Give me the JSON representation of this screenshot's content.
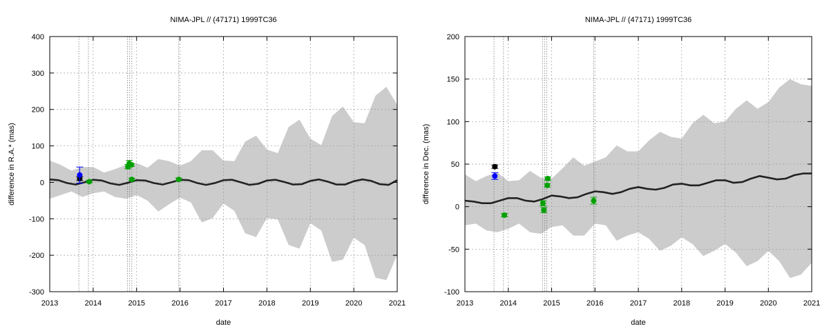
{
  "chart_data": [
    {
      "type": "line",
      "title": "NIMA-JPL // (47171) 1999TC36",
      "xlabel": "date",
      "ylabel": "difference in R.A.* (mas)",
      "xlim": [
        2013,
        2021
      ],
      "ylim": [
        -300,
        400
      ],
      "xticks": [
        2013,
        2014,
        2015,
        2016,
        2017,
        2018,
        2019,
        2020,
        2021
      ],
      "yticks": [
        -300,
        -200,
        -100,
        0,
        100,
        200,
        300,
        400
      ],
      "grid": true,
      "vlines": [
        2013.67,
        2013.89,
        2014.79,
        2014.84,
        2014.89,
        2015.97
      ],
      "series": [
        {
          "role": "uncertainty-band",
          "color": "#cccccc",
          "x": [
            2013.0,
            2013.25,
            2013.5,
            2013.75,
            2014.0,
            2014.25,
            2014.5,
            2014.75,
            2015.0,
            2015.25,
            2015.5,
            2015.75,
            2016.0,
            2016.25,
            2016.5,
            2016.75,
            2017.0,
            2017.25,
            2017.5,
            2017.75,
            2018.0,
            2018.25,
            2018.5,
            2018.75,
            2019.0,
            2019.25,
            2019.5,
            2019.75,
            2020.0,
            2020.25,
            2020.5,
            2020.75,
            2021.0
          ],
          "upper": [
            60,
            48,
            32,
            42,
            42,
            27,
            36,
            48,
            53,
            40,
            64,
            58,
            46,
            58,
            88,
            88,
            60,
            58,
            112,
            128,
            90,
            80,
            152,
            172,
            120,
            102,
            182,
            208,
            165,
            162,
            238,
            262,
            212
          ],
          "lower": [
            -45,
            -35,
            -25,
            -40,
            -30,
            -25,
            -40,
            -45,
            -35,
            -50,
            -80,
            -60,
            -42,
            -55,
            -110,
            -98,
            -58,
            -78,
            -140,
            -150,
            -98,
            -102,
            -172,
            -182,
            -112,
            -132,
            -218,
            -212,
            -152,
            -172,
            -262,
            -268,
            -198
          ]
        },
        {
          "role": "model-curve",
          "color": "#222222",
          "x": [
            2013.0,
            2013.2,
            2013.4,
            2013.6,
            2013.8,
            2014.0,
            2014.2,
            2014.4,
            2014.6,
            2014.8,
            2015.0,
            2015.2,
            2015.4,
            2015.6,
            2015.8,
            2016.0,
            2016.2,
            2016.4,
            2016.6,
            2016.8,
            2017.0,
            2017.2,
            2017.4,
            2017.6,
            2017.8,
            2018.0,
            2018.2,
            2018.4,
            2018.6,
            2018.8,
            2019.0,
            2019.2,
            2019.4,
            2019.6,
            2019.8,
            2020.0,
            2020.2,
            2020.4,
            2020.6,
            2020.8,
            2021.0
          ],
          "y": [
            8,
            6,
            -2,
            -6,
            0,
            7,
            5,
            -3,
            -7,
            -1,
            6,
            5,
            -2,
            -6,
            0,
            7,
            6,
            -2,
            -7,
            -2,
            6,
            7,
            0,
            -7,
            -4,
            5,
            7,
            1,
            -6,
            -5,
            4,
            8,
            2,
            -6,
            -6,
            3,
            8,
            4,
            -5,
            -7,
            6
          ]
        },
        {
          "role": "observations",
          "color": "#000000",
          "x": [
            2013.69
          ],
          "y": [
            10
          ],
          "err": [
            5
          ]
        },
        {
          "role": "observations",
          "color": "#0000ff",
          "x": [
            2013.69
          ],
          "y": [
            20
          ],
          "err": [
            22
          ]
        },
        {
          "role": "observations",
          "color": "#00a000",
          "x": [
            2013.91,
            2014.8,
            2014.83,
            2014.88,
            2014.89,
            2015.97
          ],
          "y": [
            2,
            43,
            52,
            48,
            8,
            8
          ],
          "err": [
            3,
            6,
            8,
            4,
            3,
            4
          ]
        }
      ]
    },
    {
      "type": "line",
      "title": "NIMA-JPL // (47171) 1999TC36",
      "xlabel": "date",
      "ylabel": "difference in Dec. (mas)",
      "xlim": [
        2013,
        2021
      ],
      "ylim": [
        -100,
        200
      ],
      "xticks": [
        2013,
        2014,
        2015,
        2016,
        2017,
        2018,
        2019,
        2020,
        2021
      ],
      "yticks": [
        -100,
        -50,
        0,
        50,
        100,
        150,
        200
      ],
      "grid": true,
      "vlines": [
        2013.67,
        2013.89,
        2014.79,
        2014.84,
        2014.89,
        2015.97
      ],
      "series": [
        {
          "role": "uncertainty-band",
          "color": "#cccccc",
          "x": [
            2013.0,
            2013.25,
            2013.5,
            2013.75,
            2014.0,
            2014.25,
            2014.5,
            2014.75,
            2015.0,
            2015.25,
            2015.5,
            2015.75,
            2016.0,
            2016.25,
            2016.5,
            2016.75,
            2017.0,
            2017.25,
            2017.5,
            2017.75,
            2018.0,
            2018.25,
            2018.5,
            2018.75,
            2019.0,
            2019.25,
            2019.5,
            2019.75,
            2020.0,
            2020.25,
            2020.5,
            2020.75,
            2021.0
          ],
          "upper": [
            38,
            30,
            36,
            40,
            30,
            31,
            42,
            34,
            33,
            45,
            58,
            48,
            53,
            58,
            72,
            65,
            65,
            78,
            88,
            82,
            80,
            98,
            108,
            98,
            100,
            115,
            125,
            115,
            123,
            140,
            150,
            144,
            142
          ],
          "lower": [
            -22,
            -20,
            -28,
            -30,
            -26,
            -20,
            -30,
            -32,
            -24,
            -22,
            -34,
            -34,
            -20,
            -22,
            -40,
            -34,
            -30,
            -38,
            -52,
            -46,
            -36,
            -44,
            -58,
            -52,
            -44,
            -54,
            -70,
            -64,
            -52,
            -64,
            -84,
            -80,
            -66
          ]
        },
        {
          "role": "model-curve",
          "color": "#222222",
          "x": [
            2013.0,
            2013.2,
            2013.4,
            2013.6,
            2013.8,
            2014.0,
            2014.2,
            2014.4,
            2014.6,
            2014.8,
            2015.0,
            2015.2,
            2015.4,
            2015.6,
            2015.8,
            2016.0,
            2016.2,
            2016.4,
            2016.6,
            2016.8,
            2017.0,
            2017.2,
            2017.4,
            2017.6,
            2017.8,
            2018.0,
            2018.2,
            2018.4,
            2018.6,
            2018.8,
            2019.0,
            2019.2,
            2019.4,
            2019.6,
            2019.8,
            2020.0,
            2020.2,
            2020.4,
            2020.6,
            2020.8,
            2021.0
          ],
          "y": [
            7,
            6,
            4,
            4,
            7,
            10,
            10,
            7,
            6,
            9,
            13,
            12,
            10,
            11,
            15,
            18,
            17,
            15,
            17,
            21,
            23,
            21,
            20,
            22,
            26,
            27,
            25,
            25,
            28,
            31,
            31,
            28,
            29,
            33,
            36,
            34,
            32,
            33,
            37,
            39,
            39
          ]
        },
        {
          "role": "observations",
          "color": "#000000",
          "x": [
            2013.69
          ],
          "y": [
            47
          ],
          "err": [
            2
          ]
        },
        {
          "role": "observations",
          "color": "#0000ff",
          "x": [
            2013.69
          ],
          "y": [
            36
          ],
          "err": [
            4
          ]
        },
        {
          "role": "observations",
          "color": "#00a000",
          "x": [
            2013.91,
            2014.8,
            2014.82,
            2014.9,
            2014.91,
            2015.97
          ],
          "y": [
            -10,
            4,
            -4,
            25,
            33,
            7
          ],
          "err": [
            2,
            3,
            3,
            2,
            2,
            4
          ]
        }
      ]
    }
  ]
}
